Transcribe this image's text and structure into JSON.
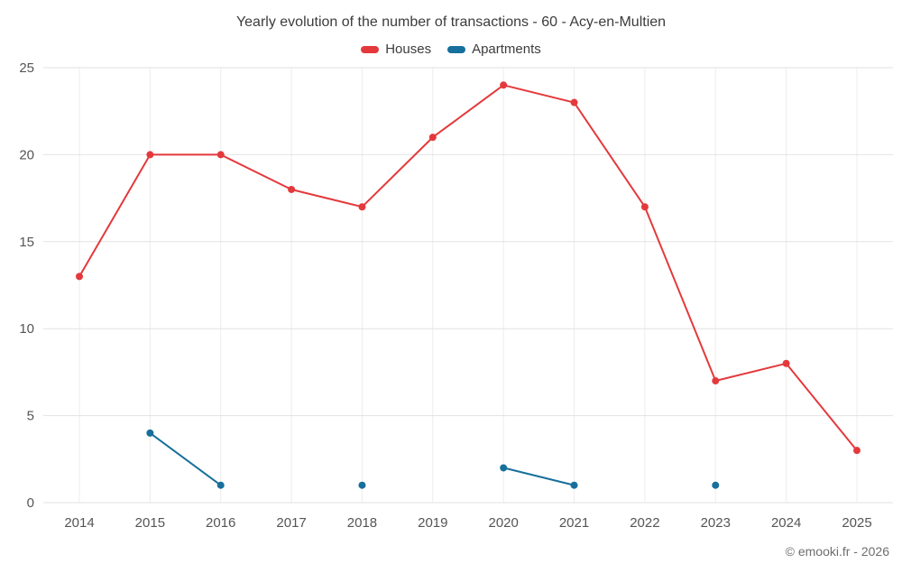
{
  "title": "Yearly evolution of the number of transactions - 60 - Acy-en-Multien",
  "footer": {
    "copyright": "© emooki.fr - 2026"
  },
  "chart_data": {
    "type": "line",
    "title": "Yearly evolution of the number of transactions - 60 - Acy-en-Multien",
    "categories": [
      "2014",
      "2015",
      "2016",
      "2017",
      "2018",
      "2019",
      "2020",
      "2021",
      "2022",
      "2023",
      "2024",
      "2025"
    ],
    "series": [
      {
        "name": "Houses",
        "color": "#e4393c",
        "values": [
          13,
          20,
          20,
          18,
          17,
          21,
          24,
          23,
          17,
          7,
          8,
          3
        ]
      },
      {
        "name": "Apartments",
        "color": "#176f9c",
        "values": [
          null,
          4,
          1,
          null,
          1,
          null,
          2,
          1,
          null,
          1,
          null,
          null
        ]
      }
    ],
    "yticks": [
      0,
      5,
      10,
      15,
      20,
      25
    ],
    "ylim": [
      0,
      25
    ],
    "xlabel": "",
    "ylabel": "",
    "grid": true,
    "legend_position": "top"
  }
}
